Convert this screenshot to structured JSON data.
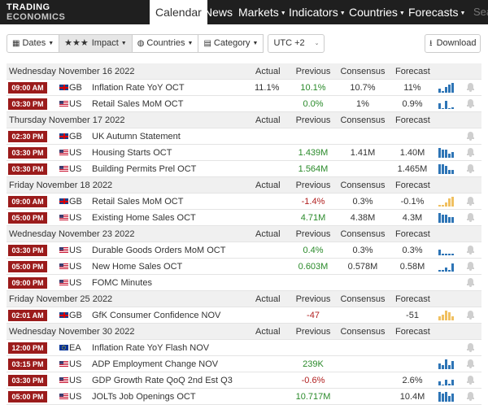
{
  "colors": {
    "nav_bg": "#1f1f1f",
    "time_badge": "#9b1b1b",
    "positive": "#2a8a2a",
    "negative": "#b22222",
    "bar_blue": "#2e75b6",
    "bar_yellow": "#f0c060",
    "header_row": "#f0f0f0"
  },
  "logo": {
    "line1": "TRADING",
    "line2": "ECONOMICS"
  },
  "nav": {
    "calendar": "Calendar",
    "news": "News",
    "markets": "Markets",
    "indicators": "Indicators",
    "countries": "Countries",
    "forecasts": "Forecasts",
    "search_placeholder": "Search"
  },
  "filters": {
    "dates": "Dates",
    "impact_stars": "★★★",
    "impact": "Impact",
    "countries": "Countries",
    "category": "Category",
    "timezone": "UTC +2",
    "download": "Download"
  },
  "icons": {
    "calendar": "calendar-icon",
    "globe": "globe-icon",
    "category": "category-icon",
    "download": "download-icon",
    "bell": "bell-icon",
    "chart": "bar-chart-icon",
    "caret": "caret-down-icon"
  },
  "columns": {
    "actual": "Actual",
    "previous": "Previous",
    "consensus": "Consensus",
    "forecast": "Forecast"
  },
  "days": [
    {
      "date": "Wednesday November 16 2022",
      "events": [
        {
          "time": "09:00 AM",
          "country": "GB",
          "flag": "gb",
          "event": "Inflation Rate YoY OCT",
          "actual": "11.1%",
          "previous": "10.1%",
          "prev_color": "green",
          "consensus": "10.7%",
          "forecast": "11%",
          "bars": [
            2,
            1,
            3,
            4,
            5
          ],
          "bar_color": "blue"
        },
        {
          "time": "03:30 PM",
          "country": "US",
          "flag": "us",
          "event": "Retail Sales MoM OCT",
          "actual": "",
          "previous": "0.0%",
          "prev_color": "green",
          "consensus": "1%",
          "forecast": "0.9%",
          "bars": [
            3,
            0,
            4,
            0,
            1
          ],
          "bar_color": "blue"
        }
      ]
    },
    {
      "date": "Thursday November 17 2022",
      "events": [
        {
          "time": "02:30 PM",
          "country": "GB",
          "flag": "gb",
          "event": "UK Autumn Statement",
          "actual": "",
          "previous": "",
          "prev_color": "",
          "consensus": "",
          "forecast": "",
          "bars": [],
          "bar_color": ""
        },
        {
          "time": "03:30 PM",
          "country": "US",
          "flag": "us",
          "event": "Housing Starts OCT",
          "actual": "",
          "previous": "1.439M",
          "prev_color": "green",
          "consensus": "1.41M",
          "forecast": "1.40M",
          "bars": [
            5,
            4,
            4,
            2,
            3
          ],
          "bar_color": "blue"
        },
        {
          "time": "03:30 PM",
          "country": "US",
          "flag": "us",
          "event": "Building Permits Prel OCT",
          "actual": "",
          "previous": "1.564M",
          "prev_color": "green",
          "consensus": "",
          "forecast": "1.465M",
          "bars": [
            5,
            5,
            4,
            2,
            2
          ],
          "bar_color": "blue"
        }
      ]
    },
    {
      "date": "Friday November 18 2022",
      "events": [
        {
          "time": "09:00 AM",
          "country": "GB",
          "flag": "gb",
          "event": "Retail Sales MoM OCT",
          "actual": "",
          "previous": "-1.4%",
          "prev_color": "red",
          "consensus": "0.3%",
          "forecast": "-0.1%",
          "bars": [
            1,
            1,
            2,
            4,
            5
          ],
          "bar_color": "yellow"
        },
        {
          "time": "05:00 PM",
          "country": "US",
          "flag": "us",
          "event": "Existing Home Sales OCT",
          "actual": "",
          "previous": "4.71M",
          "prev_color": "green",
          "consensus": "4.38M",
          "forecast": "4.3M",
          "bars": [
            5,
            4,
            4,
            3,
            3
          ],
          "bar_color": "blue"
        }
      ]
    },
    {
      "date": "Wednesday November 23 2022",
      "events": [
        {
          "time": "03:30 PM",
          "country": "US",
          "flag": "us",
          "event": "Durable Goods Orders MoM OCT",
          "actual": "",
          "previous": "0.4%",
          "prev_color": "green",
          "consensus": "0.3%",
          "forecast": "0.3%",
          "bars": [
            3,
            1,
            1,
            1,
            1
          ],
          "bar_color": "blue"
        },
        {
          "time": "05:00 PM",
          "country": "US",
          "flag": "us",
          "event": "New Home Sales OCT",
          "actual": "",
          "previous": "0.603M",
          "prev_color": "green",
          "consensus": "0.578M",
          "forecast": "0.58M",
          "bars": [
            1,
            1,
            2,
            1,
            4
          ],
          "bar_color": "blue"
        },
        {
          "time": "09:00 PM",
          "country": "US",
          "flag": "us",
          "event": "FOMC Minutes",
          "actual": "",
          "previous": "",
          "prev_color": "",
          "consensus": "",
          "forecast": "",
          "bars": [],
          "bar_color": ""
        }
      ]
    },
    {
      "date": "Friday November 25 2022",
      "events": [
        {
          "time": "02:01 AM",
          "country": "GB",
          "flag": "gb",
          "event": "GfK Consumer Confidence NOV",
          "actual": "",
          "previous": "-47",
          "prev_color": "red",
          "consensus": "",
          "forecast": "-51",
          "bars": [
            2,
            3,
            5,
            4,
            2
          ],
          "bar_color": "yellow"
        }
      ]
    },
    {
      "date": "Wednesday November 30 2022",
      "events": [
        {
          "time": "12:00 PM",
          "country": "EA",
          "flag": "ea",
          "event": "Inflation Rate YoY Flash NOV",
          "actual": "",
          "previous": "",
          "prev_color": "",
          "consensus": "",
          "forecast": "",
          "bars": [],
          "bar_color": ""
        },
        {
          "time": "03:15 PM",
          "country": "US",
          "flag": "us",
          "event": "ADP Employment Change NOV",
          "actual": "",
          "previous": "239K",
          "prev_color": "green",
          "consensus": "",
          "forecast": "",
          "bars": [
            3,
            2,
            5,
            2,
            4
          ],
          "bar_color": "blue"
        },
        {
          "time": "03:30 PM",
          "country": "US",
          "flag": "us",
          "event": "GDP Growth Rate QoQ 2nd Est Q3",
          "actual": "",
          "previous": "-0.6%",
          "prev_color": "red",
          "consensus": "",
          "forecast": "2.6%",
          "bars": [
            2,
            0,
            3,
            1,
            3
          ],
          "bar_color": "blue"
        },
        {
          "time": "05:00 PM",
          "country": "US",
          "flag": "us",
          "event": "JOLTs Job Openings OCT",
          "actual": "",
          "previous": "10.717M",
          "prev_color": "green",
          "consensus": "",
          "forecast": "10.4M",
          "bars": [
            5,
            4,
            5,
            3,
            4
          ],
          "bar_color": "blue"
        }
      ]
    }
  ]
}
